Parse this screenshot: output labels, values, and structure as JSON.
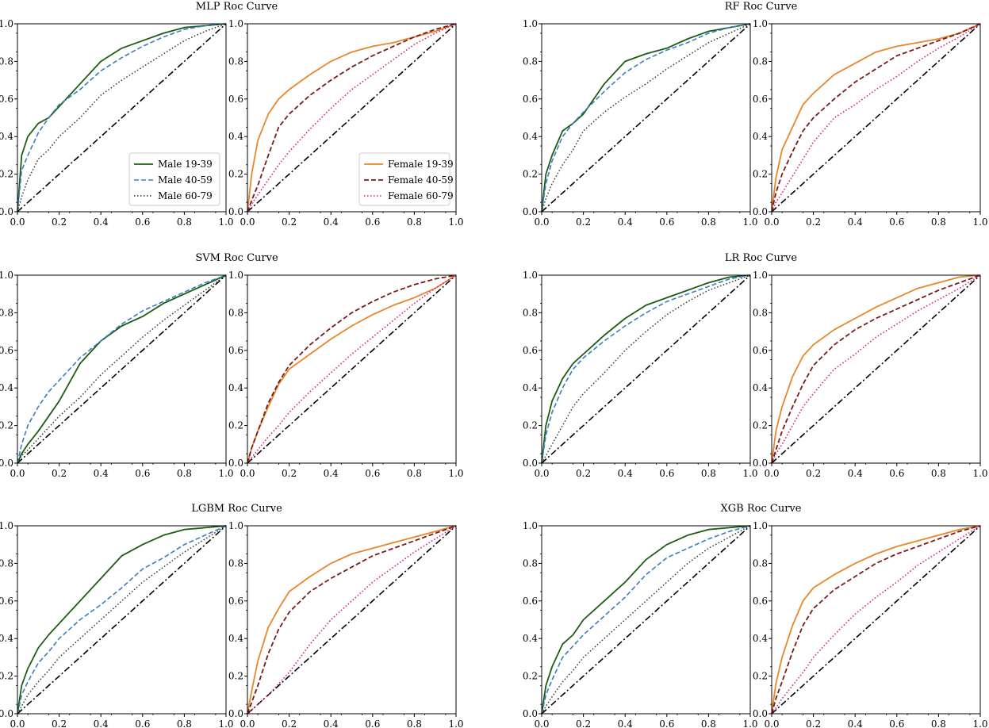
{
  "styles": {
    "Male 19-39": {
      "color": "#1b5e10",
      "dash": "",
      "width": 1.8
    },
    "Male 40-59": {
      "color": "#3a7dbf",
      "dash": "6,3",
      "width": 1.6
    },
    "Male 60-79": {
      "color": "#333333",
      "dash": "1.5,2.5",
      "width": 1.5
    },
    "Female 19-39": {
      "color": "#e8862b",
      "dash": "",
      "width": 1.8
    },
    "Female 40-59": {
      "color": "#7a1a1a",
      "dash": "6,3",
      "width": 1.8
    },
    "Female 60-79": {
      "color": "#d61a8c",
      "dash": "1.5,2.5",
      "width": 1.6
    },
    "diagonal": {
      "color": "#000000",
      "dash": "8,3,2,3",
      "width": 1.6
    }
  },
  "chart_data": [
    {
      "type": "line",
      "title": "MLP Roc Curve",
      "group": "Male",
      "xlim": [
        0,
        1
      ],
      "ylim": [
        0,
        1
      ],
      "show_legend": true,
      "legend_position": "lower-right",
      "x": [
        0,
        0.02,
        0.05,
        0.1,
        0.15,
        0.2,
        0.3,
        0.4,
        0.5,
        0.6,
        0.7,
        0.8,
        0.9,
        1.0
      ],
      "series": [
        {
          "name": "Male 19-39",
          "values": [
            0,
            0.3,
            0.4,
            0.47,
            0.5,
            0.56,
            0.68,
            0.8,
            0.87,
            0.91,
            0.95,
            0.98,
            0.99,
            1.0
          ]
        },
        {
          "name": "Male 40-59",
          "values": [
            0,
            0.22,
            0.3,
            0.42,
            0.5,
            0.57,
            0.65,
            0.75,
            0.82,
            0.88,
            0.93,
            0.97,
            0.99,
            1.0
          ]
        },
        {
          "name": "Male 60-79",
          "values": [
            0,
            0.08,
            0.17,
            0.28,
            0.33,
            0.4,
            0.5,
            0.62,
            0.7,
            0.77,
            0.84,
            0.91,
            0.96,
            1.0
          ]
        }
      ]
    },
    {
      "type": "line",
      "title": "",
      "group": "Female",
      "xlim": [
        0,
        1
      ],
      "ylim": [
        0,
        1
      ],
      "show_legend": true,
      "legend_position": "lower-right",
      "x": [
        0,
        0.02,
        0.05,
        0.1,
        0.15,
        0.2,
        0.3,
        0.4,
        0.5,
        0.6,
        0.7,
        0.8,
        0.9,
        1.0
      ],
      "series": [
        {
          "name": "Female 19-39",
          "values": [
            0,
            0.2,
            0.38,
            0.52,
            0.6,
            0.65,
            0.73,
            0.8,
            0.85,
            0.88,
            0.9,
            0.93,
            0.96,
            1.0
          ]
        },
        {
          "name": "Female 40-59",
          "values": [
            0,
            0.06,
            0.14,
            0.3,
            0.45,
            0.52,
            0.62,
            0.7,
            0.77,
            0.83,
            0.88,
            0.93,
            0.97,
            1.0
          ]
        },
        {
          "name": "Female 60-79",
          "values": [
            0,
            0.04,
            0.09,
            0.17,
            0.25,
            0.32,
            0.44,
            0.55,
            0.65,
            0.73,
            0.81,
            0.89,
            0.95,
            1.0
          ]
        }
      ]
    },
    {
      "type": "line",
      "title": "RF Roc Curve",
      "group": "Male",
      "xlim": [
        0,
        1
      ],
      "ylim": [
        0,
        1
      ],
      "show_legend": false,
      "x": [
        0,
        0.02,
        0.05,
        0.1,
        0.15,
        0.2,
        0.3,
        0.4,
        0.5,
        0.6,
        0.7,
        0.8,
        0.9,
        1.0
      ],
      "series": [
        {
          "name": "Male 19-39",
          "values": [
            0,
            0.2,
            0.3,
            0.43,
            0.47,
            0.52,
            0.68,
            0.8,
            0.84,
            0.87,
            0.92,
            0.96,
            0.98,
            1.0
          ]
        },
        {
          "name": "Male 40-59",
          "values": [
            0,
            0.15,
            0.27,
            0.4,
            0.47,
            0.53,
            0.64,
            0.74,
            0.81,
            0.86,
            0.9,
            0.95,
            0.98,
            1.0
          ]
        },
        {
          "name": "Male 60-79",
          "values": [
            0,
            0.07,
            0.15,
            0.25,
            0.33,
            0.43,
            0.53,
            0.61,
            0.68,
            0.76,
            0.83,
            0.9,
            0.95,
            1.0
          ]
        }
      ]
    },
    {
      "type": "line",
      "title": "",
      "group": "Female",
      "xlim": [
        0,
        1
      ],
      "ylim": [
        0,
        1
      ],
      "show_legend": false,
      "x": [
        0,
        0.02,
        0.05,
        0.1,
        0.15,
        0.2,
        0.3,
        0.4,
        0.5,
        0.6,
        0.7,
        0.8,
        0.9,
        1.0
      ],
      "series": [
        {
          "name": "Female 19-39",
          "values": [
            0,
            0.18,
            0.33,
            0.45,
            0.57,
            0.63,
            0.73,
            0.79,
            0.85,
            0.88,
            0.9,
            0.92,
            0.95,
            1.0
          ]
        },
        {
          "name": "Female 40-59",
          "values": [
            0,
            0.1,
            0.2,
            0.32,
            0.43,
            0.5,
            0.6,
            0.69,
            0.76,
            0.83,
            0.87,
            0.91,
            0.95,
            1.0
          ]
        },
        {
          "name": "Female 60-79",
          "values": [
            0,
            0.05,
            0.1,
            0.19,
            0.28,
            0.37,
            0.5,
            0.57,
            0.65,
            0.72,
            0.8,
            0.87,
            0.93,
            1.0
          ]
        }
      ]
    },
    {
      "type": "line",
      "title": "SVM Roc Curve",
      "group": "Male",
      "xlim": [
        0,
        1
      ],
      "ylim": [
        0,
        1
      ],
      "show_legend": false,
      "x": [
        0,
        0.02,
        0.05,
        0.1,
        0.15,
        0.2,
        0.3,
        0.4,
        0.5,
        0.6,
        0.7,
        0.8,
        0.9,
        1.0
      ],
      "series": [
        {
          "name": "Male 19-39",
          "values": [
            0,
            0.05,
            0.1,
            0.17,
            0.25,
            0.33,
            0.53,
            0.65,
            0.73,
            0.78,
            0.85,
            0.9,
            0.95,
            1.0
          ]
        },
        {
          "name": "Male 40-59",
          "values": [
            0,
            0.1,
            0.2,
            0.3,
            0.38,
            0.44,
            0.56,
            0.65,
            0.74,
            0.81,
            0.86,
            0.91,
            0.96,
            1.0
          ]
        },
        {
          "name": "Male 60-79",
          "values": [
            0,
            0.04,
            0.07,
            0.13,
            0.19,
            0.25,
            0.35,
            0.47,
            0.57,
            0.67,
            0.76,
            0.84,
            0.92,
            1.0
          ]
        }
      ]
    },
    {
      "type": "line",
      "title": "",
      "group": "Female",
      "xlim": [
        0,
        1
      ],
      "ylim": [
        0,
        1
      ],
      "show_legend": false,
      "x": [
        0,
        0.02,
        0.05,
        0.1,
        0.15,
        0.2,
        0.3,
        0.4,
        0.5,
        0.6,
        0.7,
        0.8,
        0.9,
        1.0
      ],
      "series": [
        {
          "name": "Female 19-39",
          "values": [
            0,
            0.08,
            0.17,
            0.3,
            0.42,
            0.5,
            0.58,
            0.66,
            0.73,
            0.79,
            0.84,
            0.88,
            0.93,
            1.0
          ]
        },
        {
          "name": "Female 40-59",
          "values": [
            0,
            0.08,
            0.17,
            0.32,
            0.43,
            0.52,
            0.63,
            0.72,
            0.8,
            0.86,
            0.91,
            0.95,
            0.98,
            1.0
          ]
        },
        {
          "name": "Female 60-79",
          "values": [
            0,
            0.03,
            0.07,
            0.14,
            0.2,
            0.27,
            0.38,
            0.48,
            0.58,
            0.67,
            0.76,
            0.85,
            0.93,
            1.0
          ]
        }
      ]
    },
    {
      "type": "line",
      "title": "LR Roc Curve",
      "group": "Male",
      "xlim": [
        0,
        1
      ],
      "ylim": [
        0,
        1
      ],
      "show_legend": false,
      "x": [
        0,
        0.02,
        0.05,
        0.1,
        0.15,
        0.2,
        0.3,
        0.4,
        0.5,
        0.6,
        0.7,
        0.8,
        0.9,
        1.0
      ],
      "series": [
        {
          "name": "Male 19-39",
          "values": [
            0,
            0.2,
            0.33,
            0.45,
            0.53,
            0.58,
            0.68,
            0.77,
            0.84,
            0.88,
            0.92,
            0.96,
            0.99,
            1.0
          ]
        },
        {
          "name": "Male 40-59",
          "values": [
            0,
            0.15,
            0.27,
            0.4,
            0.5,
            0.56,
            0.65,
            0.73,
            0.8,
            0.86,
            0.9,
            0.94,
            0.98,
            1.0
          ]
        },
        {
          "name": "Male 60-79",
          "values": [
            0,
            0.04,
            0.1,
            0.2,
            0.3,
            0.37,
            0.48,
            0.6,
            0.7,
            0.79,
            0.86,
            0.92,
            0.96,
            1.0
          ]
        }
      ]
    },
    {
      "type": "line",
      "title": "",
      "group": "Female",
      "xlim": [
        0,
        1
      ],
      "ylim": [
        0,
        1
      ],
      "show_legend": false,
      "x": [
        0,
        0.02,
        0.05,
        0.1,
        0.15,
        0.2,
        0.3,
        0.4,
        0.5,
        0.6,
        0.7,
        0.8,
        0.9,
        1.0
      ],
      "series": [
        {
          "name": "Female 19-39",
          "values": [
            0,
            0.17,
            0.3,
            0.46,
            0.57,
            0.63,
            0.71,
            0.77,
            0.83,
            0.88,
            0.93,
            0.96,
            0.99,
            1.0
          ]
        },
        {
          "name": "Female 40-59",
          "values": [
            0,
            0.07,
            0.17,
            0.3,
            0.42,
            0.52,
            0.63,
            0.71,
            0.77,
            0.82,
            0.87,
            0.92,
            0.96,
            1.0
          ]
        },
        {
          "name": "Female 60-79",
          "values": [
            0,
            0.05,
            0.1,
            0.2,
            0.3,
            0.37,
            0.5,
            0.58,
            0.67,
            0.74,
            0.81,
            0.87,
            0.93,
            1.0
          ]
        }
      ]
    },
    {
      "type": "line",
      "title": "LGBM Roc Curve",
      "group": "Male",
      "xlim": [
        0,
        1
      ],
      "ylim": [
        0,
        1
      ],
      "show_legend": false,
      "x": [
        0,
        0.02,
        0.05,
        0.1,
        0.15,
        0.2,
        0.3,
        0.4,
        0.5,
        0.6,
        0.7,
        0.8,
        0.9,
        1.0
      ],
      "series": [
        {
          "name": "Male 19-39",
          "values": [
            0,
            0.15,
            0.24,
            0.35,
            0.42,
            0.48,
            0.6,
            0.72,
            0.84,
            0.9,
            0.95,
            0.98,
            0.99,
            1.0
          ]
        },
        {
          "name": "Male 40-59",
          "values": [
            0,
            0.1,
            0.17,
            0.27,
            0.33,
            0.4,
            0.5,
            0.58,
            0.67,
            0.77,
            0.83,
            0.9,
            0.95,
            1.0
          ]
        },
        {
          "name": "Male 60-79",
          "values": [
            0,
            0.04,
            0.1,
            0.17,
            0.23,
            0.3,
            0.4,
            0.5,
            0.6,
            0.7,
            0.78,
            0.86,
            0.93,
            1.0
          ]
        }
      ]
    },
    {
      "type": "line",
      "title": "",
      "group": "Female",
      "xlim": [
        0,
        1
      ],
      "ylim": [
        0,
        1
      ],
      "show_legend": false,
      "x": [
        0,
        0.02,
        0.05,
        0.1,
        0.15,
        0.2,
        0.3,
        0.4,
        0.5,
        0.6,
        0.7,
        0.8,
        0.9,
        1.0
      ],
      "series": [
        {
          "name": "Female 19-39",
          "values": [
            0,
            0.12,
            0.28,
            0.46,
            0.56,
            0.65,
            0.73,
            0.8,
            0.85,
            0.88,
            0.91,
            0.94,
            0.97,
            1.0
          ]
        },
        {
          "name": "Female 40-59",
          "values": [
            0,
            0.06,
            0.15,
            0.32,
            0.45,
            0.54,
            0.65,
            0.72,
            0.78,
            0.84,
            0.88,
            0.92,
            0.96,
            1.0
          ]
        },
        {
          "name": "Female 60-79",
          "values": [
            0,
            0.02,
            0.05,
            0.1,
            0.16,
            0.22,
            0.37,
            0.5,
            0.6,
            0.7,
            0.78,
            0.86,
            0.93,
            1.0
          ]
        }
      ]
    },
    {
      "type": "line",
      "title": "XGB Roc Curve",
      "group": "Male",
      "xlim": [
        0,
        1
      ],
      "ylim": [
        0,
        1
      ],
      "show_legend": false,
      "x": [
        0,
        0.02,
        0.05,
        0.1,
        0.15,
        0.2,
        0.3,
        0.4,
        0.5,
        0.6,
        0.7,
        0.8,
        0.9,
        1.0
      ],
      "series": [
        {
          "name": "Male 19-39",
          "values": [
            0,
            0.15,
            0.25,
            0.37,
            0.42,
            0.5,
            0.6,
            0.7,
            0.82,
            0.9,
            0.95,
            0.98,
            0.99,
            1.0
          ]
        },
        {
          "name": "Male 40-59",
          "values": [
            0,
            0.1,
            0.18,
            0.3,
            0.36,
            0.42,
            0.52,
            0.62,
            0.74,
            0.83,
            0.88,
            0.93,
            0.97,
            1.0
          ]
        },
        {
          "name": "Male 60-79",
          "values": [
            0,
            0.04,
            0.09,
            0.17,
            0.23,
            0.3,
            0.4,
            0.5,
            0.6,
            0.7,
            0.8,
            0.88,
            0.94,
            1.0
          ]
        }
      ]
    },
    {
      "type": "line",
      "title": "",
      "group": "Female",
      "xlim": [
        0,
        1
      ],
      "ylim": [
        0,
        1
      ],
      "show_legend": false,
      "x": [
        0,
        0.02,
        0.05,
        0.1,
        0.15,
        0.2,
        0.3,
        0.4,
        0.5,
        0.6,
        0.7,
        0.8,
        0.9,
        1.0
      ],
      "series": [
        {
          "name": "Female 19-39",
          "values": [
            0,
            0.16,
            0.3,
            0.47,
            0.6,
            0.67,
            0.74,
            0.8,
            0.85,
            0.89,
            0.92,
            0.95,
            0.98,
            1.0
          ]
        },
        {
          "name": "Female 40-59",
          "values": [
            0,
            0.08,
            0.17,
            0.33,
            0.47,
            0.56,
            0.66,
            0.73,
            0.8,
            0.85,
            0.89,
            0.93,
            0.97,
            1.0
          ]
        },
        {
          "name": "Female 60-79",
          "values": [
            0,
            0.03,
            0.08,
            0.15,
            0.22,
            0.3,
            0.42,
            0.53,
            0.62,
            0.7,
            0.79,
            0.86,
            0.93,
            1.0
          ]
        }
      ]
    }
  ],
  "tick_labels": [
    "0.0",
    "0.2",
    "0.4",
    "0.6",
    "0.8",
    "1.0"
  ]
}
